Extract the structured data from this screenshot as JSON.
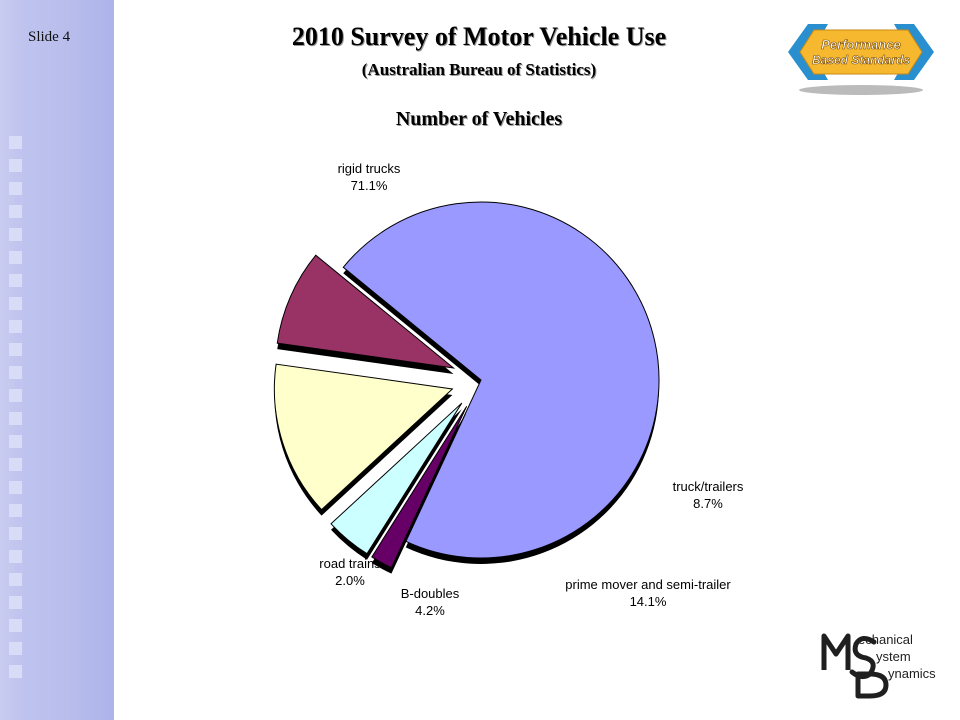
{
  "slide": {
    "number_label": "Slide 4"
  },
  "header": {
    "title": "2010 Survey of Motor Vehicle Use",
    "subtitle": "(Australian Bureau of Statistics)"
  },
  "logos": {
    "pbs": {
      "line1": "Performance",
      "line2": "Based Standards",
      "accent": "#f5b82e",
      "arrow": "#2a8fcf"
    },
    "msd": {
      "word1": "echanical",
      "word2": "ystem",
      "word3": "ynamics",
      "color": "#1f1f1f"
    }
  },
  "chart_data": {
    "type": "pie",
    "title": "Number of Vehicles",
    "slices": [
      {
        "name": "rigid trucks",
        "value": 71.1,
        "label": "71.1%",
        "color": "#9999ff",
        "exploded": false
      },
      {
        "name": "truck/trailers",
        "value": 8.7,
        "label": "8.7%",
        "color": "#993366",
        "exploded": true
      },
      {
        "name": "prime mover and semi-trailer",
        "value": 14.1,
        "label": "14.1%",
        "color": "#ffffcc",
        "exploded": true
      },
      {
        "name": "B-doubles",
        "value": 4.2,
        "label": "4.2%",
        "color": "#ccffff",
        "exploded": true
      },
      {
        "name": "road trains",
        "value": 2.0,
        "label": "2.0%",
        "color": "#660066",
        "exploded": true
      }
    ],
    "legend": "none"
  }
}
